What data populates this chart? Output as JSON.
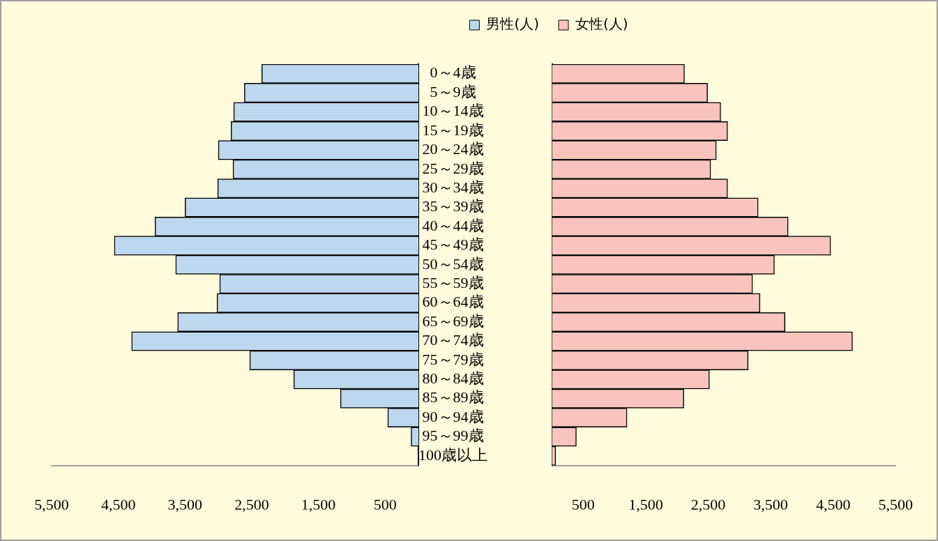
{
  "chart_data": [
    {
      "type": "bar",
      "orientation": "horizontal",
      "legend": "top right",
      "categories": [
        "0～4歳",
        "5～9歳",
        "10～14歳",
        "15～19歳",
        "20～24歳",
        "25～29歳",
        "30～34歳",
        "35～39歳",
        "40～44歳",
        "45～49歳",
        "50～54歳",
        "55～59歳",
        "60～64歳",
        "65～69歳",
        "70～74歳",
        "75～79歳",
        "80～84歳",
        "85～89歳",
        "90～94歳",
        "95～99歳",
        "100歳以上"
      ],
      "series": [
        {
          "name": "男性(人)",
          "color": "#bdd7ee",
          "values": [
            2350,
            2610,
            2770,
            2810,
            3000,
            2780,
            3010,
            3500,
            3950,
            4560,
            3640,
            2980,
            3020,
            3610,
            4300,
            2530,
            1870,
            1170,
            460,
            110,
            null
          ]
        }
      ],
      "xlim": [
        5500,
        0
      ],
      "xticks": [
        {
          "value": 5500,
          "label": "5,500"
        },
        {
          "value": 4500,
          "label": "4,500"
        },
        {
          "value": 3500,
          "label": "3,500"
        },
        {
          "value": 2500,
          "label": "2,500"
        },
        {
          "value": 1500,
          "label": "1,500"
        },
        500
      ]
    },
    {
      "type": "bar",
      "orientation": "horizontal",
      "legend": "top left",
      "categories": [
        null,
        null,
        null,
        null,
        null,
        null,
        null,
        null,
        null,
        null,
        null,
        null,
        null,
        null,
        null,
        null,
        null,
        null,
        null,
        null,
        null
      ],
      "series": [
        {
          "name": "女性(人)",
          "color": "#f8c4bd",
          "values": [
            2120,
            2490,
            2700,
            2810,
            2630,
            2540,
            2810,
            3300,
            3780,
            4460,
            3560,
            3210,
            3330,
            3730,
            4810,
            3140,
            2520,
            2110,
            1200,
            390,
            60
          ]
        }
      ],
      "xlim": [
        0,
        5500
      ],
      "xticks": [
        500,
        {
          "value": 1500,
          "label": "1,500"
        },
        {
          "value": 2500,
          "label": "2,500"
        },
        {
          "value": 3500,
          "label": "3,500"
        },
        {
          "value": 4500,
          "label": "4,500"
        },
        {
          "value": 5500,
          "label": "5,500"
        }
      ]
    }
  ]
}
